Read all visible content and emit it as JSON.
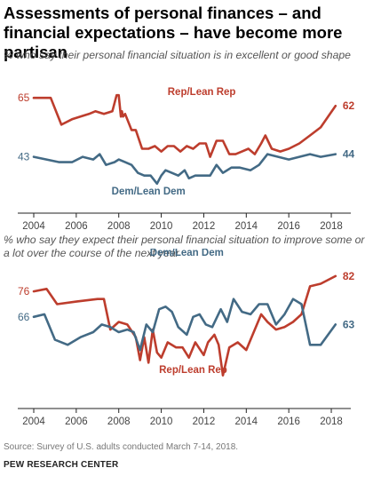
{
  "title": "Assessments of personal finances – and financial expectations – have become more partisan",
  "source": "Source: Survey of U.S. adults conducted March 7-14, 2018.",
  "org": "PEW RESEARCH CENTER",
  "colors": {
    "rep": "#bd3d2d",
    "dem": "#436a85",
    "axis": "#222222",
    "tick": "#444444"
  },
  "chart_data": [
    {
      "type": "line",
      "subtitle": "% who say their personal financial situation is in excellent or good shape",
      "xlim": [
        2004,
        2018.5
      ],
      "ylim": [
        22,
        75
      ],
      "xticks": [
        "2004",
        "2006",
        "2008",
        "2010",
        "2012",
        "2014",
        "2016",
        "2018"
      ],
      "grid": false,
      "series": [
        {
          "name": "Rep/Lean Rep",
          "start_label": "65",
          "end_label": "62",
          "x": [
            2004.0,
            2004.5,
            2004.8,
            2005.3,
            2005.8,
            2006.2,
            2006.6,
            2006.9,
            2007.3,
            2007.7,
            2007.9,
            2008.0,
            2008.1,
            2008.15,
            2008.2,
            2008.3,
            2008.4,
            2008.6,
            2008.8,
            2009.1,
            2009.4,
            2009.7,
            2010.0,
            2010.3,
            2010.6,
            2010.9,
            2011.2,
            2011.5,
            2011.8,
            2012.1,
            2012.3,
            2012.6,
            2012.9,
            2013.2,
            2013.5,
            2013.8,
            2014.1,
            2014.4,
            2014.7,
            2014.9,
            2015.2,
            2015.6,
            2016.0,
            2016.5,
            2017.0,
            2017.5,
            2018.2
          ],
          "values": [
            65,
            65,
            65,
            55,
            57,
            58,
            59,
            60,
            59,
            60,
            66,
            66,
            58,
            60,
            58,
            59,
            57,
            53,
            53,
            46,
            46,
            47,
            45,
            47,
            47,
            45,
            47,
            46,
            48,
            48,
            43,
            49,
            49,
            44,
            44,
            45,
            46,
            44,
            48,
            51,
            46,
            45,
            46,
            48,
            51,
            54,
            62
          ]
        },
        {
          "name": "Dem/Lean Dem",
          "start_label": "43",
          "end_label": "44",
          "x": [
            2004.0,
            2004.6,
            2005.2,
            2005.8,
            2006.3,
            2006.8,
            2007.1,
            2007.4,
            2007.8,
            2008.0,
            2008.3,
            2008.6,
            2008.9,
            2009.2,
            2009.5,
            2009.8,
            2010.0,
            2010.2,
            2010.5,
            2010.8,
            2011.1,
            2011.3,
            2011.6,
            2012.0,
            2012.3,
            2012.6,
            2012.9,
            2013.3,
            2013.7,
            2014.2,
            2014.6,
            2015.0,
            2015.5,
            2016.0,
            2016.5,
            2017.0,
            2017.5,
            2018.2
          ],
          "values": [
            43,
            42,
            41,
            41,
            43,
            42,
            44,
            40,
            41,
            42,
            41,
            40,
            37,
            36,
            36,
            33,
            36,
            38,
            37,
            36,
            38,
            35,
            36,
            36,
            36,
            40,
            37,
            39,
            39,
            38,
            40,
            44,
            43,
            42,
            43,
            44,
            43,
            44
          ]
        }
      ]
    },
    {
      "type": "line",
      "subtitle": "% who say they expect their personal financial situation to improve some or a lot over the course of the next year",
      "xlim": [
        2004,
        2018.5
      ],
      "ylim": [
        30,
        90
      ],
      "xticks": [
        "2004",
        "2006",
        "2008",
        "2010",
        "2012",
        "2014",
        "2016",
        "2018"
      ],
      "grid": false,
      "series": [
        {
          "name": "Rep/Lean Rep",
          "start_label": "76",
          "end_label": "82",
          "x": [
            2004.0,
            2004.6,
            2005.1,
            2006.0,
            2007.0,
            2007.3,
            2007.6,
            2008.0,
            2008.4,
            2008.8,
            2009.0,
            2009.2,
            2009.4,
            2009.6,
            2009.8,
            2010.0,
            2010.3,
            2010.7,
            2011.0,
            2011.3,
            2011.6,
            2012.0,
            2012.2,
            2012.5,
            2012.7,
            2012.9,
            2013.2,
            2013.6,
            2014.0,
            2014.3,
            2014.7,
            2015.0,
            2015.4,
            2015.8,
            2016.2,
            2016.6,
            2017.0,
            2017.5,
            2018.2
          ],
          "values": [
            76,
            77,
            71,
            72,
            73,
            73,
            61,
            64,
            63,
            58,
            49,
            58,
            48,
            61,
            52,
            50,
            56,
            54,
            54,
            50,
            56,
            51,
            56,
            59,
            55,
            43,
            54,
            56,
            53,
            59,
            67,
            64,
            61,
            62,
            64,
            67,
            78,
            79,
            82
          ]
        },
        {
          "name": "Dem/Lean Dem",
          "start_label": "66",
          "end_label": "63",
          "x": [
            2004.0,
            2004.5,
            2005.0,
            2005.6,
            2006.2,
            2006.8,
            2007.2,
            2007.6,
            2008.0,
            2008.4,
            2008.7,
            2009.0,
            2009.3,
            2009.6,
            2009.9,
            2010.2,
            2010.5,
            2010.8,
            2011.2,
            2011.5,
            2011.8,
            2012.1,
            2012.4,
            2012.8,
            2013.1,
            2013.4,
            2013.8,
            2014.2,
            2014.6,
            2015.0,
            2015.4,
            2015.8,
            2016.2,
            2016.6,
            2017.0,
            2017.5,
            2018.2
          ],
          "values": [
            66,
            67,
            57,
            55,
            58,
            60,
            63,
            62,
            60,
            61,
            60,
            53,
            63,
            60,
            69,
            70,
            68,
            62,
            59,
            66,
            67,
            63,
            62,
            69,
            64,
            73,
            68,
            67,
            71,
            71,
            63,
            67,
            73,
            71,
            55,
            55,
            63
          ]
        }
      ]
    }
  ]
}
